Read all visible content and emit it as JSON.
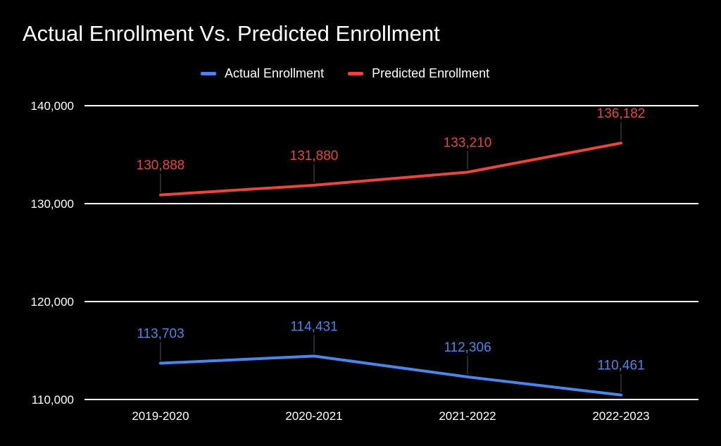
{
  "chart_data": {
    "type": "line",
    "title": "Actual Enrollment Vs. Predicted Enrollment",
    "categories": [
      "2019-2020",
      "2020-2021",
      "2021-2022",
      "2022-2023"
    ],
    "ylim": [
      110000,
      140000
    ],
    "yticks": [
      110000,
      120000,
      130000,
      140000
    ],
    "ytick_labels": [
      "110,000",
      "120,000",
      "130,000",
      "140,000"
    ],
    "grid": true,
    "legend_position": "top",
    "series": [
      {
        "name": "Actual Enrollment",
        "color": "#4a86e8",
        "values": [
          113703,
          114431,
          112306,
          110461
        ],
        "labels": [
          "113,703",
          "114,431",
          "112,306",
          "110,461"
        ]
      },
      {
        "name": "Predicted Enrollment",
        "color": "#e8453c",
        "values": [
          130888,
          131880,
          133210,
          136182
        ],
        "labels": [
          "130,888",
          "131,880",
          "133,210",
          "136,182"
        ]
      }
    ]
  }
}
